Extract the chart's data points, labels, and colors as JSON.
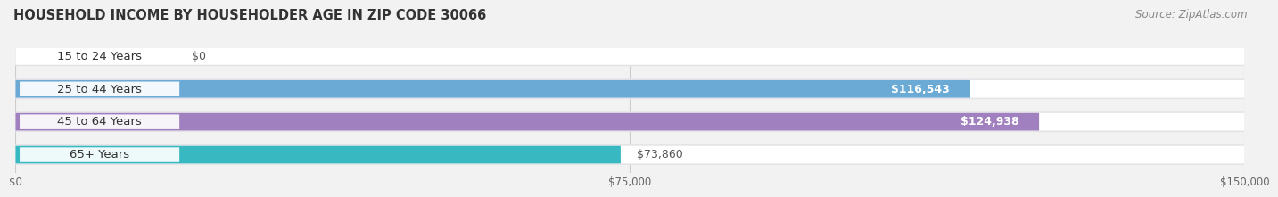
{
  "title": "HOUSEHOLD INCOME BY HOUSEHOLDER AGE IN ZIP CODE 30066",
  "source": "Source: ZipAtlas.com",
  "categories": [
    "15 to 24 Years",
    "25 to 44 Years",
    "45 to 64 Years",
    "65+ Years"
  ],
  "values": [
    0,
    116543,
    124938,
    73860
  ],
  "bar_colors": [
    "#f0a0a8",
    "#6aaad4",
    "#a080be",
    "#38b8c0"
  ],
  "background_color": "#f2f2f2",
  "bar_bg_color": "#e4e4e8",
  "bar_inner_bg": "#ffffff",
  "xlim": [
    0,
    150000
  ],
  "xticks": [
    0,
    75000,
    150000
  ],
  "xtick_labels": [
    "$0",
    "$75,000",
    "$150,000"
  ],
  "value_labels": [
    "$0",
    "$116,543",
    "$124,938",
    "$73,860"
  ],
  "value_label_inside": [
    false,
    true,
    true,
    false
  ],
  "title_fontsize": 10.5,
  "label_fontsize": 9.5,
  "value_fontsize": 9,
  "source_fontsize": 8.5
}
